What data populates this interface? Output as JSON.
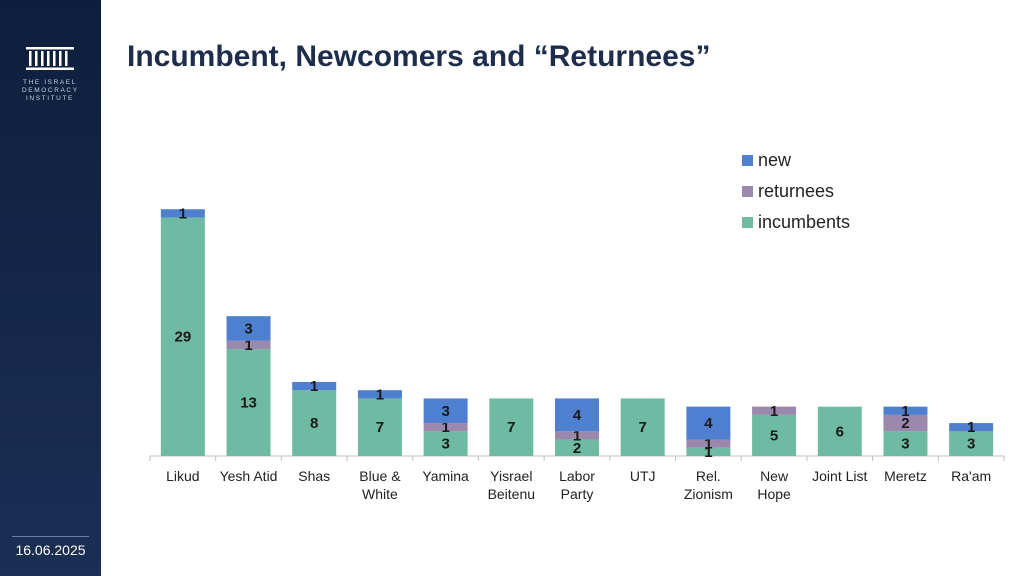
{
  "sidebar": {
    "logo_lines": [
      "THE ISRAEL",
      "DEMOCRACY",
      "INSTITUTE"
    ],
    "date": "16.06.2025"
  },
  "colors": {
    "new": "#4f7fcf",
    "returnees": "#9b88ad",
    "incumbents": "#6fbaa2",
    "sidebar": "#14284a",
    "title": "#1f2d4d"
  },
  "chart_data": {
    "type": "bar",
    "stacked": true,
    "title": "Incumbent, Newcomers and “Returnees”",
    "categories": [
      [
        "Likud"
      ],
      [
        "Yesh Atid"
      ],
      [
        "Shas"
      ],
      [
        "Blue &",
        "White"
      ],
      [
        "Yamina"
      ],
      [
        "Yisrael",
        "Beitenu"
      ],
      [
        "Labor",
        "Party"
      ],
      [
        "UTJ"
      ],
      [
        "Rel.",
        "Zionism"
      ],
      [
        "New",
        "Hope"
      ],
      [
        "Joint List"
      ],
      [
        "Meretz"
      ],
      [
        "Ra'am"
      ]
    ],
    "series": [
      {
        "name": "incumbents",
        "values": [
          29,
          13,
          8,
          7,
          3,
          7,
          2,
          7,
          1,
          5,
          6,
          3,
          3
        ]
      },
      {
        "name": "returnees",
        "values": [
          0,
          1,
          0,
          0,
          1,
          0,
          1,
          0,
          1,
          1,
          0,
          2,
          0
        ]
      },
      {
        "name": "new",
        "values": [
          1,
          3,
          1,
          1,
          3,
          0,
          4,
          0,
          4,
          0,
          0,
          1,
          1
        ]
      }
    ],
    "legend_order": [
      "new",
      "returnees",
      "incumbents"
    ],
    "legend_position": "top-right",
    "ylim": [
      0,
      31
    ],
    "grid": false
  }
}
